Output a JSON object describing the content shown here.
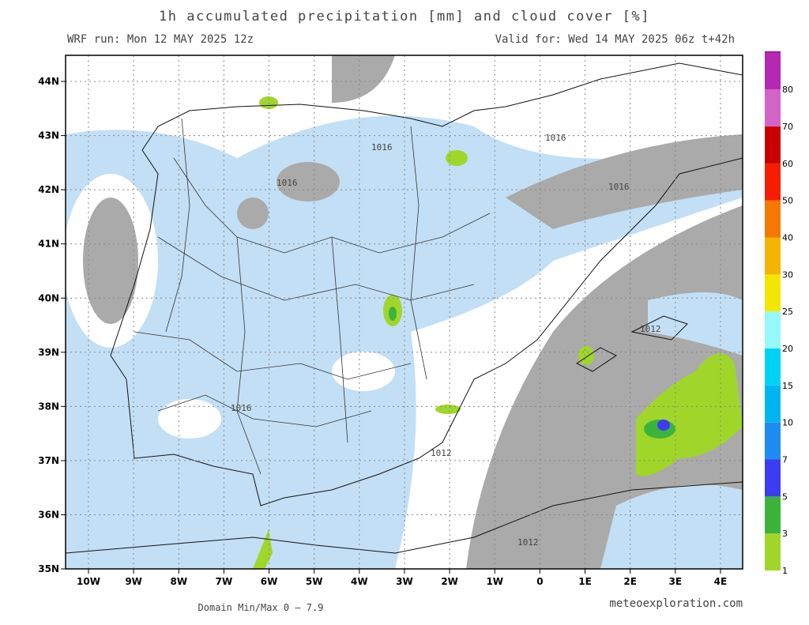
{
  "header": {
    "title": "1h accumulated precipitation [mm] and cloud cover [%]",
    "run": "WRF run: Mon 12 MAY 2025 12z",
    "valid": "Valid for: Wed 14 MAY 2025 06z  t+42h"
  },
  "axes": {
    "longitudes": [
      "10W",
      "9W",
      "8W",
      "7W",
      "6W",
      "5W",
      "4W",
      "3W",
      "2W",
      "1W",
      "0",
      "1E",
      "2E",
      "3E",
      "4E"
    ],
    "latitudes": [
      "35N",
      "36N",
      "37N",
      "38N",
      "39N",
      "40N",
      "41N",
      "42N",
      "43N",
      "44N"
    ]
  },
  "contours": [
    "1016",
    "1016",
    "1016",
    "1016",
    "1016",
    "1012",
    "1012",
    "1012"
  ],
  "colorbar": [
    {
      "label": "1",
      "color": "#a0d62a"
    },
    {
      "label": "3",
      "color": "#3cb43c"
    },
    {
      "label": "5",
      "color": "#3c3cf0"
    },
    {
      "label": "7",
      "color": "#1e8cf0"
    },
    {
      "label": "10",
      "color": "#00b4f0"
    },
    {
      "label": "15",
      "color": "#00d2f5"
    },
    {
      "label": "20",
      "color": "#96fafa"
    },
    {
      "label": "25",
      "color": "#f5e600"
    },
    {
      "label": "30",
      "color": "#f5b400"
    },
    {
      "label": "40",
      "color": "#f57800"
    },
    {
      "label": "50",
      "color": "#f51e00"
    },
    {
      "label": "60",
      "color": "#c80000"
    },
    {
      "label": "70",
      "color": "#d264c8"
    },
    {
      "label": "80",
      "color": "#b428b4"
    }
  ],
  "colorbar_top": "#8c008c",
  "footer": {
    "minmax": "Domain Min/Max 0 — 7.9",
    "credit": "meteoexploration.com"
  }
}
